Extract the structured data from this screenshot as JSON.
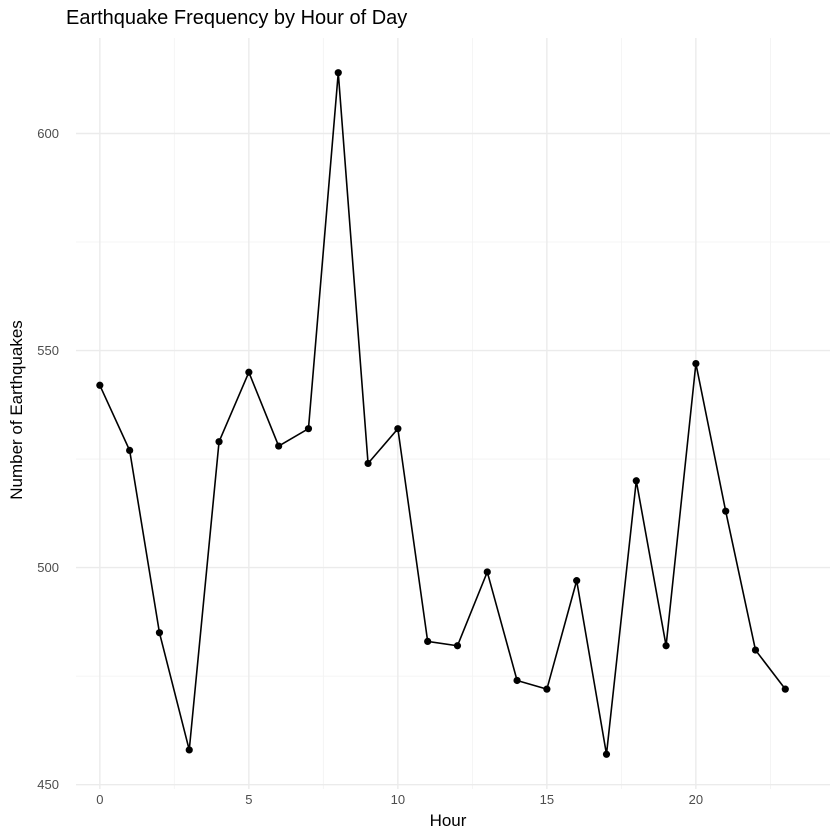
{
  "chart_data": {
    "type": "line",
    "title": "Earthquake Frequency by Hour of Day",
    "xlabel": "Hour",
    "ylabel": "Number of Earthquakes",
    "x": [
      0,
      1,
      2,
      3,
      4,
      5,
      6,
      7,
      8,
      9,
      10,
      11,
      12,
      13,
      14,
      15,
      16,
      17,
      18,
      19,
      20,
      21,
      22,
      23
    ],
    "values": [
      542,
      527,
      485,
      458,
      529,
      545,
      528,
      532,
      614,
      524,
      532,
      483,
      482,
      499,
      474,
      472,
      497,
      457,
      520,
      482,
      547,
      513,
      481,
      472
    ],
    "xlim": [
      -0.8,
      24.5
    ],
    "ylim": [
      449,
      622
    ],
    "x_ticks": [
      0,
      5,
      10,
      15,
      20
    ],
    "y_ticks": [
      450,
      500,
      550,
      600
    ],
    "x_tick_labels": [
      "0",
      "5",
      "10",
      "15",
      "20"
    ],
    "y_tick_labels": [
      "450",
      "500",
      "550",
      "600"
    ],
    "grid": true,
    "markers": true,
    "line_color": "#000000",
    "marker_color": "#000000",
    "grid_color": "#ebebeb"
  }
}
